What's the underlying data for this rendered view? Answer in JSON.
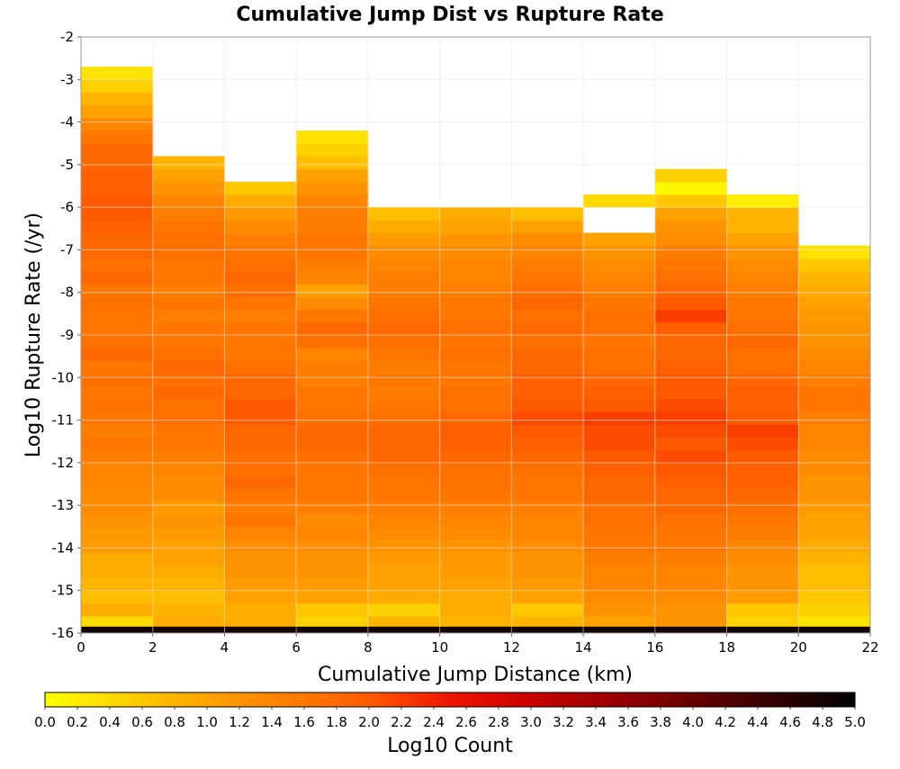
{
  "chart_data": {
    "type": "heatmap",
    "title": "Cumulative Jump Dist vs Rupture Rate",
    "xlabel": "Cumulative Jump Distance (km)",
    "ylabel": "Log10 Rupture Rate (/yr)",
    "x_ticks": [
      "0",
      "2",
      "4",
      "6",
      "8",
      "10",
      "12",
      "14",
      "16",
      "18",
      "20",
      "22"
    ],
    "y_ticks": [
      "-2",
      "-3",
      "-4",
      "-5",
      "-6",
      "-7",
      "-8",
      "-9",
      "-10",
      "-11",
      "-12",
      "-13",
      "-14",
      "-15",
      "-16"
    ],
    "xlim": [
      0,
      22
    ],
    "ylim": [
      -16,
      -2
    ],
    "x_bins": [
      0,
      2,
      4,
      6,
      8,
      10,
      12,
      14,
      16,
      18,
      20,
      22
    ],
    "y_bin_width": 0.3,
    "y_bin_start": -15.9,
    "columns": [
      {
        "x": [
          0,
          2
        ],
        "z_bottom_to_top": [
          0.4,
          0.9,
          0.7,
          0.8,
          0.9,
          0.9,
          1.1,
          1.1,
          1.2,
          1.3,
          1.3,
          1.4,
          1.4,
          1.5,
          1.6,
          1.5,
          1.6,
          1.7,
          1.6,
          1.7,
          1.6,
          1.8,
          1.7,
          1.6,
          1.6,
          1.7,
          1.6,
          1.8,
          1.7,
          1.8,
          1.8,
          1.9,
          2.0,
          2.0,
          1.9,
          1.9,
          1.8,
          1.8,
          1.6,
          1.4,
          1.0,
          0.8,
          0.5,
          0.3
        ]
      },
      {
        "x": [
          2,
          4
        ],
        "z_bottom_to_top": [
          0.9,
          0.8,
          0.7,
          0.8,
          0.9,
          1.0,
          1.0,
          1.1,
          1.2,
          1.1,
          1.3,
          1.3,
          1.4,
          1.5,
          1.6,
          1.6,
          1.7,
          1.7,
          1.8,
          1.7,
          1.8,
          1.7,
          1.6,
          1.6,
          1.5,
          1.6,
          1.5,
          1.6,
          1.6,
          1.7,
          1.7,
          1.6,
          1.5,
          1.4,
          1.2,
          1.0,
          0.8
        ]
      },
      {
        "x": [
          4,
          6
        ],
        "z_bottom_to_top": [
          0.9,
          0.9,
          1.0,
          1.1,
          1.2,
          1.2,
          1.3,
          1.4,
          1.6,
          1.5,
          1.6,
          1.8,
          1.7,
          1.7,
          1.8,
          1.8,
          2.0,
          2.0,
          1.8,
          1.8,
          1.7,
          1.6,
          1.6,
          1.6,
          1.5,
          1.6,
          1.7,
          1.8,
          1.7,
          1.6,
          1.5,
          1.3,
          1.1,
          0.9,
          0.6
        ]
      },
      {
        "x": [
          6,
          8
        ],
        "z_bottom_to_top": [
          0.5,
          0.6,
          1.0,
          1.1,
          1.2,
          1.2,
          1.3,
          1.4,
          1.3,
          1.5,
          1.6,
          1.6,
          1.6,
          1.7,
          1.8,
          1.8,
          1.7,
          1.6,
          1.6,
          1.5,
          1.5,
          1.4,
          1.7,
          1.8,
          1.6,
          1.3,
          1.0,
          1.4,
          1.5,
          1.6,
          1.6,
          1.5,
          1.5,
          1.4,
          1.2,
          1.0,
          0.7,
          0.5,
          0.3
        ]
      },
      {
        "x": [
          8,
          10
        ],
        "z_bottom_to_top": [
          0.8,
          0.5,
          0.9,
          1.0,
          1.0,
          1.1,
          1.2,
          1.3,
          1.4,
          1.5,
          1.6,
          1.6,
          1.7,
          1.8,
          1.8,
          1.8,
          1.7,
          1.6,
          1.5,
          1.6,
          1.5,
          1.6,
          1.7,
          1.8,
          1.7,
          1.6,
          1.5,
          1.5,
          1.4,
          1.3,
          1.1,
          0.9,
          0.7
        ]
      },
      {
        "x": [
          10,
          12
        ],
        "z_bottom_to_top": [
          0.8,
          0.9,
          0.9,
          1.0,
          1.1,
          1.1,
          1.2,
          1.3,
          1.4,
          1.5,
          1.6,
          1.7,
          1.7,
          1.8,
          1.9,
          1.9,
          1.8,
          1.7,
          1.7,
          1.6,
          1.6,
          1.7,
          1.6,
          1.7,
          1.6,
          1.6,
          1.5,
          1.4,
          1.4,
          1.3,
          1.2,
          1.0,
          0.9
        ]
      },
      {
        "x": [
          12,
          14
        ],
        "z_bottom_to_top": [
          0.8,
          0.6,
          1.0,
          1.1,
          1.2,
          1.2,
          1.3,
          1.4,
          1.4,
          1.5,
          1.6,
          1.6,
          1.7,
          1.8,
          1.9,
          2.0,
          2.1,
          2.0,
          1.9,
          1.9,
          1.8,
          1.8,
          1.7,
          1.8,
          1.7,
          1.8,
          1.7,
          1.6,
          1.5,
          1.4,
          1.3,
          1.0,
          0.7
        ]
      },
      {
        "x": [
          14,
          16
        ],
        "z_bottom_to_top": [
          1.0,
          1.2,
          1.3,
          1.4,
          1.4,
          1.5,
          1.6,
          1.6,
          1.7,
          1.7,
          1.8,
          1.8,
          1.9,
          2.0,
          2.1,
          2.1,
          2.2,
          2.0,
          1.9,
          1.8,
          1.7,
          1.7,
          1.6,
          1.7,
          1.7,
          1.6,
          1.5,
          1.4,
          1.3,
          1.2,
          1.0,
          null,
          null,
          0.4
        ]
      },
      {
        "x": [
          16,
          18
        ],
        "z_bottom_to_top": [
          1.2,
          1.2,
          1.3,
          1.4,
          1.4,
          1.5,
          1.6,
          1.6,
          1.7,
          1.8,
          1.8,
          1.9,
          2.0,
          2.1,
          2.0,
          2.1,
          2.2,
          2.1,
          2.0,
          2.0,
          1.9,
          1.8,
          1.8,
          1.9,
          2.2,
          2.0,
          1.8,
          1.7,
          1.6,
          1.5,
          1.3,
          1.2,
          1.0,
          0.6,
          0.1,
          0.5
        ]
      },
      {
        "x": [
          18,
          20
        ],
        "z_bottom_to_top": [
          0.5,
          0.6,
          1.1,
          1.2,
          1.2,
          1.3,
          1.4,
          1.5,
          1.6,
          1.7,
          1.8,
          1.9,
          1.9,
          2.0,
          2.1,
          2.2,
          2.0,
          1.9,
          1.9,
          1.8,
          1.7,
          1.7,
          1.8,
          1.7,
          1.6,
          1.6,
          1.5,
          1.4,
          1.3,
          1.2,
          1.0,
          0.8,
          0.8,
          0.2
        ]
      },
      {
        "x": [
          20,
          22
        ],
        "z_bottom_to_top": [
          0.3,
          0.5,
          0.6,
          0.7,
          0.7,
          0.8,
          0.9,
          1.0,
          1.0,
          1.1,
          1.2,
          1.2,
          1.3,
          1.3,
          1.4,
          1.4,
          1.5,
          1.6,
          1.6,
          1.5,
          1.4,
          1.3,
          1.2,
          1.2,
          1.1,
          1.0,
          0.9,
          0.8,
          0.6,
          0.3
        ]
      }
    ],
    "bottom_row": {
      "y": [
        -16,
        -15.85
      ],
      "z": 4.8
    },
    "colorbar": {
      "label": "Log10 Count",
      "range": [
        0,
        5
      ],
      "ticks": [
        "0.0",
        "0.2",
        "0.4",
        "0.6",
        "0.8",
        "1.0",
        "1.2",
        "1.4",
        "1.6",
        "1.8",
        "2.0",
        "2.2",
        "2.4",
        "2.6",
        "2.8",
        "3.0",
        "3.2",
        "3.4",
        "3.6",
        "3.8",
        "4.0",
        "4.2",
        "4.4",
        "4.6",
        "4.8",
        "5.0"
      ],
      "colormap_stops": [
        [
          0,
          "#ffff00"
        ],
        [
          0.2,
          "#ffa200"
        ],
        [
          0.4,
          "#ff5a00"
        ],
        [
          0.5,
          "#ee1500"
        ],
        [
          0.6,
          "#c90000"
        ],
        [
          0.8,
          "#690000"
        ],
        [
          1,
          "#000000"
        ]
      ]
    },
    "grid": true
  }
}
